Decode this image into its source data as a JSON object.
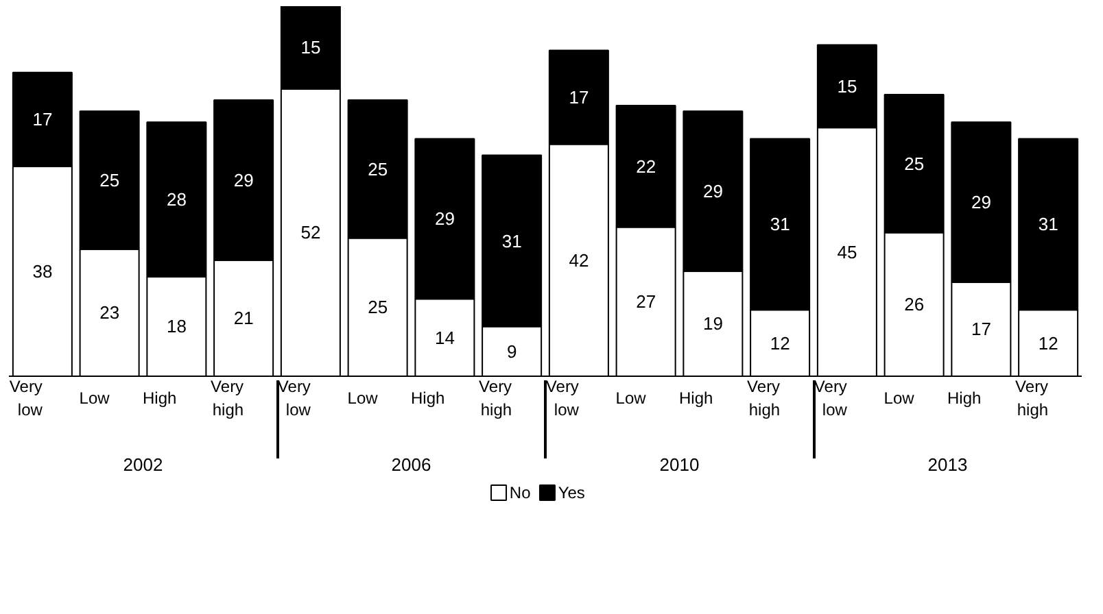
{
  "chart_data": {
    "type": "bar",
    "stacked": true,
    "legend": "bottom",
    "categories": [
      "Very low",
      "Low",
      "High",
      "Very high",
      "Very low",
      "Low",
      "High",
      "Very high",
      "Very low",
      "Low",
      "High",
      "Very high",
      "Very low",
      "Low",
      "High",
      "Very high"
    ],
    "annotations": [
      "2002",
      "2006",
      "2010",
      "2013"
    ],
    "series": [
      {
        "name": "No",
        "color": "#ffffff",
        "values": [
          38,
          23,
          18,
          21,
          52,
          25,
          14,
          9,
          42,
          27,
          19,
          12,
          45,
          26,
          17,
          12
        ]
      },
      {
        "name": "Yes",
        "color": "#000000",
        "values": [
          17,
          25,
          28,
          29,
          15,
          25,
          29,
          31,
          17,
          22,
          29,
          31,
          15,
          25,
          29,
          31
        ]
      }
    ],
    "data_labels": true
  }
}
